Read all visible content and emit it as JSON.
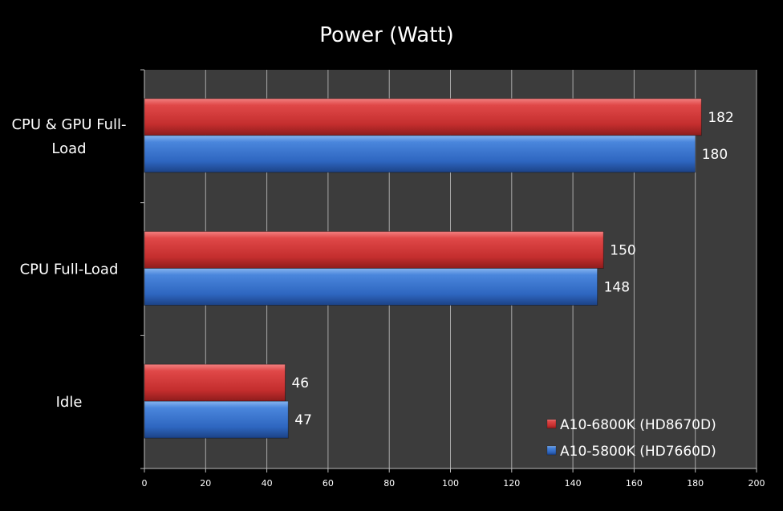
{
  "chart_data": {
    "type": "bar",
    "orientation": "horizontal",
    "title": "Power (Watt)",
    "categories": [
      "CPU & GPU Full-Load",
      "CPU Full-Load",
      "Idle"
    ],
    "series": [
      {
        "name": "A10-6800K (HD8670D)",
        "color": "#e03a3a",
        "values": [
          182,
          150,
          46
        ]
      },
      {
        "name": "A10-5800K (HD7660D)",
        "color": "#3a78d6",
        "values": [
          180,
          148,
          47
        ]
      }
    ],
    "xlim": [
      0,
      200
    ],
    "xticks": [
      "0",
      "20",
      "40",
      "60",
      "80",
      "100",
      "120",
      "140",
      "160",
      "180",
      "200"
    ],
    "grid": true,
    "plot_background": "#3c3c3c",
    "legend_position": "bottom-right"
  }
}
